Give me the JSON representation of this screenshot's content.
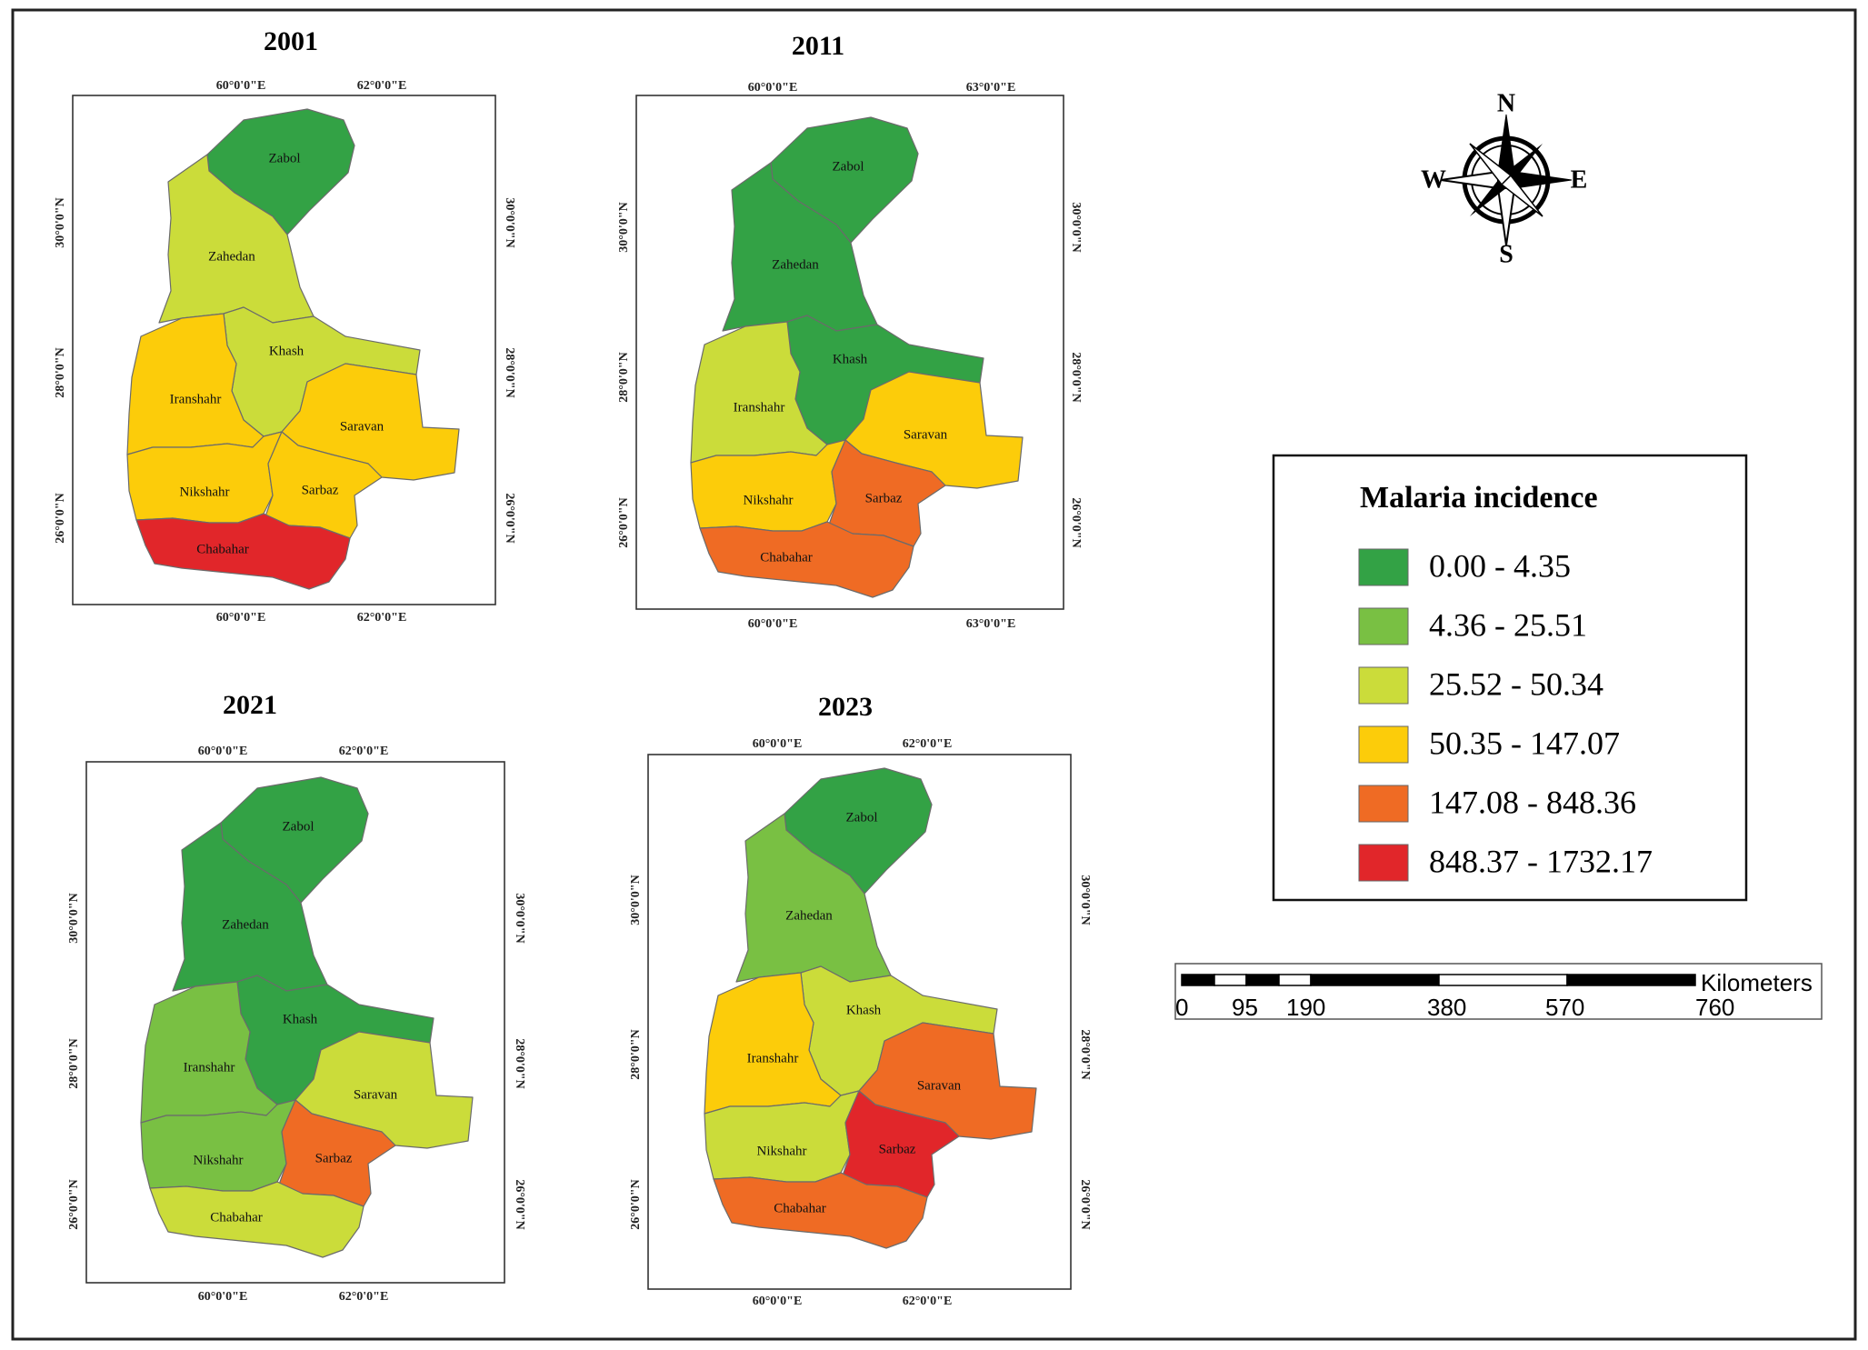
{
  "legend": {
    "title": "Malaria incidence",
    "classes": [
      {
        "label": "0.00 - 4.35",
        "color": "#33a245"
      },
      {
        "label": "4.36 - 25.51",
        "color": "#79c043"
      },
      {
        "label": "25.52 - 50.34",
        "color": "#cbdc3a"
      },
      {
        "label": "50.35 - 147.07",
        "color": "#fccc0a"
      },
      {
        "label": "147.08 - 848.36",
        "color": "#ef6b24"
      },
      {
        "label": "848.37 - 1732.17",
        "color": "#e1262a"
      }
    ]
  },
  "compass": {
    "north": "N",
    "south": "S",
    "east": "E",
    "west": "W"
  },
  "scale_bar": {
    "unit": "Kilometers",
    "ticks": [
      "0",
      "95",
      "190",
      "380",
      "570",
      "760"
    ]
  },
  "maps": [
    {
      "year": "2001",
      "lon_labels": [
        "60°0'0\"E",
        "62°0'0\"E"
      ],
      "lat_labels": [
        "30°0'0\"N",
        "28°0'0\"N",
        "26°0'0\"N"
      ],
      "districts": {
        "Zabol": 0,
        "Zahedan": 2,
        "Khash": 2,
        "Iranshahr": 3,
        "Saravan": 3,
        "Nikshahr": 3,
        "Sarbaz": 3,
        "Chabahar": 5
      }
    },
    {
      "year": "2011",
      "lon_labels": [
        "60°0'0\"E",
        "63°0'0\"E"
      ],
      "lat_labels": [
        "30°0'0\"N",
        "28°0'0\"N",
        "26°0'0\"N"
      ],
      "districts": {
        "Zabol": 0,
        "Zahedan": 0,
        "Khash": 0,
        "Iranshahr": 2,
        "Saravan": 3,
        "Nikshahr": 3,
        "Sarbaz": 4,
        "Chabahar": 4
      }
    },
    {
      "year": "2021",
      "lon_labels": [
        "60°0'0\"E",
        "62°0'0\"E"
      ],
      "lat_labels": [
        "30°0'0\"N",
        "28°0'0\"N",
        "26°0'0\"N"
      ],
      "districts": {
        "Zabol": 0,
        "Zahedan": 0,
        "Khash": 0,
        "Iranshahr": 1,
        "Saravan": 2,
        "Nikshahr": 1,
        "Sarbaz": 4,
        "Chabahar": 2
      }
    },
    {
      "year": "2023",
      "lon_labels": [
        "60°0'0\"E",
        "62°0'0\"E"
      ],
      "lat_labels": [
        "30°0'0\"N",
        "28°0'0\"N",
        "26°0'0\"N"
      ],
      "districts": {
        "Zabol": 0,
        "Zahedan": 1,
        "Khash": 2,
        "Iranshahr": 3,
        "Saravan": 4,
        "Nikshahr": 2,
        "Sarbaz": 5,
        "Chabahar": 4
      }
    }
  ]
}
